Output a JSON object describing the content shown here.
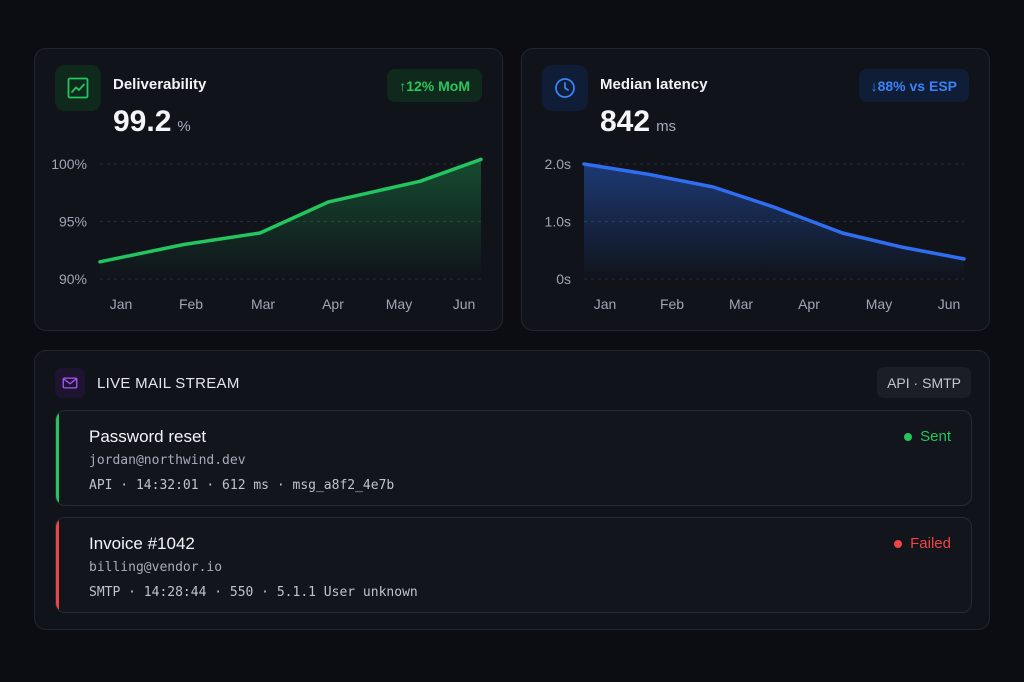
{
  "deliverability": {
    "title": "Deliverability",
    "value": "99.2",
    "unit": "%",
    "badge": "↑12% MoM",
    "icon": "trending-chart-icon",
    "color": "#22c55e"
  },
  "latency": {
    "title": "Median latency",
    "value": "842",
    "unit": "ms",
    "badge": "↓88% vs ESP",
    "icon": "clock-icon",
    "color": "#2f6ef0"
  },
  "chart_data": [
    {
      "type": "area",
      "title": "Deliverability",
      "categories": [
        "Jan",
        "Feb",
        "Mar",
        "Apr",
        "May",
        "Jun"
      ],
      "series": [
        {
          "values": [
            91.5,
            93.0,
            94.0,
            96.7,
            98.5,
            100.4
          ]
        }
      ],
      "x": [
        0.0,
        1.1,
        2.1,
        3.0,
        4.2,
        5.0
      ],
      "ylim": [
        90,
        100
      ],
      "yticks": [
        "90%",
        "95%",
        "100%"
      ],
      "grid": true,
      "color": "#22c55e"
    },
    {
      "type": "area",
      "title": "Median latency",
      "categories": [
        "Jan",
        "Feb",
        "Mar",
        "Apr",
        "May",
        "Jun"
      ],
      "series": [
        {
          "values": [
            2.0,
            1.82,
            1.6,
            1.25,
            0.8,
            0.55,
            0.35
          ]
        }
      ],
      "x": [
        0.0,
        0.85,
        1.7,
        2.5,
        3.4,
        4.2,
        5.0
      ],
      "ylim": [
        0,
        2
      ],
      "yticks": [
        "0s",
        "1.0s",
        "2.0s"
      ],
      "grid": true,
      "color": "#2f6ef0"
    }
  ],
  "stream": {
    "title": "LIVE MAIL STREAM",
    "badge": "API · SMTP",
    "icon": "mail-icon",
    "messages": [
      {
        "subject": "Password reset",
        "email": "jordan@northwind.dev",
        "meta": "API · 14:32:01 · 612 ms · msg_a8f2_4e7b",
        "status": "Sent",
        "status_color": "#22c55e"
      },
      {
        "subject": "Invoice #1042",
        "email": "billing@vendor.io",
        "meta": "SMTP · 14:28:44 · 550 · 5.1.1 User unknown",
        "status": "Failed",
        "status_color": "#ef4444"
      }
    ]
  }
}
